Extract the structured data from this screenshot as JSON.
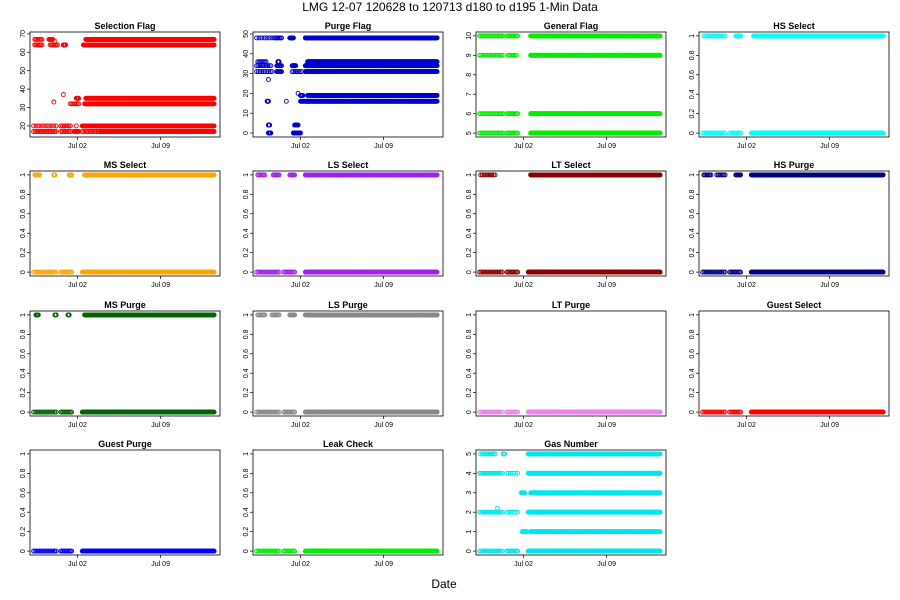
{
  "figure": {
    "title": "LMG   12-07     120628 to 120713     d180 to d195   1-Min Data",
    "xlabel": "Date",
    "x_ticks": [
      {
        "label": "Jul 02",
        "day": 184
      },
      {
        "label": "Jul 09",
        "day": 191
      }
    ],
    "xlim": [
      180,
      196
    ]
  },
  "chart_data": [
    {
      "type": "scatter",
      "title": "Selection Flag",
      "color": "#ff0000",
      "ylim": [
        14,
        71
      ],
      "yticks": [
        20,
        30,
        40,
        50,
        60,
        70
      ],
      "levels": [
        {
          "y": 17,
          "segs": [
            [
              180.3,
              182.2
            ],
            [
              182.6,
              183.4
            ],
            [
              183.7,
              184.1
            ],
            [
              184.4,
              186
            ],
            [
              186,
              192
            ],
            [
              192,
              195.5
            ]
          ],
          "pts": 35
        },
        {
          "y": 20,
          "segs": [
            [
              180.3,
              182.2
            ],
            [
              182.6,
              183.4
            ],
            [
              184.4,
              195.5
            ]
          ],
          "pts": 20
        },
        {
          "y": 32,
          "segs": [
            [
              183.4,
              184.1
            ],
            [
              184.6,
              195.5
            ]
          ],
          "pts": 28
        },
        {
          "y": 35,
          "segs": [
            [
              183.9,
              184.1
            ],
            [
              184.7,
              195.5
            ]
          ],
          "pts": 20
        },
        {
          "y": 64,
          "segs": [
            [
              180.4,
              181
            ],
            [
              181.7,
              182.3
            ],
            [
              182.8,
              183
            ],
            [
              184.5,
              195.5
            ]
          ],
          "pts": 28
        },
        {
          "y": 67,
          "segs": [
            [
              180.4,
              181
            ],
            [
              181.6,
              181.9
            ],
            [
              184.7,
              195.5
            ]
          ],
          "pts": 16
        }
      ],
      "extra": [
        [
          182,
          33
        ],
        [
          182.8,
          37
        ],
        [
          183.9,
          20
        ],
        [
          182.1,
          66
        ]
      ]
    },
    {
      "type": "scatter",
      "title": "Purge Flag",
      "color": "#0000cc",
      "ylim": [
        -2,
        51
      ],
      "yticks": [
        0,
        10,
        20,
        30,
        40,
        50
      ],
      "levels": [
        {
          "y": 0,
          "segs": [
            [
              181.3,
              181.5
            ],
            [
              183.4,
              184
            ]
          ],
          "pts": 6
        },
        {
          "y": 4,
          "segs": [
            [
              181.3,
              181.4
            ],
            [
              183.5,
              183.8
            ]
          ],
          "pts": 3
        },
        {
          "y": 16,
          "segs": [
            [
              181.2,
              181.3
            ],
            [
              184,
              184.3
            ],
            [
              184.4,
              195.5
            ]
          ],
          "pts": 25
        },
        {
          "y": 19,
          "segs": [
            [
              184,
              184.2
            ],
            [
              184.6,
              195.5
            ]
          ],
          "pts": 20
        },
        {
          "y": 31,
          "segs": [
            [
              180.3,
              181.6
            ],
            [
              182,
              182.4
            ],
            [
              183.3,
              184.1
            ],
            [
              184.4,
              195.5
            ]
          ],
          "pts": 35
        },
        {
          "y": 34,
          "segs": [
            [
              180.3,
              181.5
            ],
            [
              182,
              182.4
            ],
            [
              183.3,
              183.6
            ],
            [
              184.4,
              195.5
            ]
          ],
          "pts": 28
        },
        {
          "y": 36,
          "segs": [
            [
              180.4,
              181.1
            ],
            [
              182.1,
              182.2
            ],
            [
              184.6,
              195.5
            ]
          ],
          "pts": 20
        },
        {
          "y": 48,
          "segs": [
            [
              180.3,
              181.6
            ],
            [
              181.8,
              182.4
            ],
            [
              183.1,
              183.4
            ],
            [
              184.4,
              195.5
            ]
          ],
          "pts": 24
        }
      ],
      "extra": [
        [
          181.3,
          27
        ],
        [
          182.8,
          16
        ],
        [
          183.8,
          20
        ]
      ]
    },
    {
      "type": "scatter",
      "title": "General Flag",
      "color": "#00ee00",
      "ylim": [
        4.8,
        10.2
      ],
      "yticks": [
        5,
        6,
        7,
        8,
        9,
        10
      ],
      "levels": [
        {
          "y": 5,
          "segs": [
            [
              180.3,
              182.3
            ],
            [
              182.6,
              183.5
            ],
            [
              184.6,
              195.5
            ]
          ],
          "pts": 40
        },
        {
          "y": 6,
          "segs": [
            [
              180.3,
              182.3
            ],
            [
              182.6,
              183.5
            ],
            [
              184.6,
              195.5
            ]
          ],
          "pts": 40
        },
        {
          "y": 9,
          "segs": [
            [
              180.3,
              182.3
            ],
            [
              182.7,
              183.4
            ],
            [
              184.6,
              195.5
            ]
          ],
          "pts": 36
        },
        {
          "y": 10,
          "segs": [
            [
              180.3,
              182.3
            ],
            [
              182.6,
              183.5
            ],
            [
              184.6,
              195.5
            ]
          ],
          "pts": 40
        }
      ],
      "extra": []
    },
    {
      "type": "scatter",
      "title": "HS Select",
      "color": "#00ffff",
      "ylim": [
        -0.04,
        1.04
      ],
      "yticks": [
        0,
        0.2,
        0.4,
        0.6,
        0.8,
        1.0
      ],
      "levels": [
        {
          "y": 0,
          "segs": [
            [
              180.3,
              182.2
            ],
            [
              182.6,
              183.5
            ],
            [
              184.4,
              195.5
            ]
          ],
          "pts": 40
        },
        {
          "y": 1,
          "segs": [
            [
              180.4,
              182.2
            ],
            [
              183.1,
              183.5
            ],
            [
              184.6,
              195.5
            ]
          ],
          "pts": 36
        }
      ],
      "extra": []
    },
    {
      "type": "scatter",
      "title": "MS Select",
      "color": "#ffa500",
      "ylim": [
        -0.04,
        1.04
      ],
      "yticks": [
        0,
        0.2,
        0.4,
        0.6,
        0.8,
        1.0
      ],
      "levels": [
        {
          "y": 0,
          "segs": [
            [
              180.3,
              182.2
            ],
            [
              182.6,
              183.5
            ],
            [
              184.4,
              195.5
            ]
          ],
          "pts": 40
        },
        {
          "y": 1,
          "segs": [
            [
              180.4,
              180.8
            ],
            [
              182,
              182.1
            ],
            [
              183.3,
              183.5
            ],
            [
              184.6,
              195.5
            ]
          ],
          "pts": 28
        }
      ],
      "extra": []
    },
    {
      "type": "scatter",
      "title": "LS Select",
      "color": "#a020f0",
      "ylim": [
        -0.04,
        1.04
      ],
      "yticks": [
        0,
        0.2,
        0.4,
        0.6,
        0.8,
        1.0
      ],
      "levels": [
        {
          "y": 0,
          "segs": [
            [
              180.3,
              182.2
            ],
            [
              182.6,
              183.5
            ],
            [
              184.4,
              195.5
            ]
          ],
          "pts": 40
        },
        {
          "y": 1,
          "segs": [
            [
              180.4,
              181
            ],
            [
              181.7,
              182.2
            ],
            [
              183.1,
              183.5
            ],
            [
              184.4,
              195.5
            ]
          ],
          "pts": 32
        }
      ],
      "extra": []
    },
    {
      "type": "scatter",
      "title": "LT Select",
      "color": "#8b0000",
      "ylim": [
        -0.04,
        1.04
      ],
      "yticks": [
        0,
        0.2,
        0.4,
        0.6,
        0.8,
        1.0
      ],
      "levels": [
        {
          "y": 0,
          "segs": [
            [
              180.3,
              182.2
            ],
            [
              182.6,
              183.5
            ],
            [
              184.4,
              195.5
            ]
          ],
          "pts": 40
        },
        {
          "y": 1,
          "segs": [
            [
              180.4,
              181.6
            ],
            [
              184.6,
              195.5
            ]
          ],
          "pts": 30
        }
      ],
      "extra": []
    },
    {
      "type": "scatter",
      "title": "HS Purge",
      "color": "#000080",
      "ylim": [
        -0.04,
        1.04
      ],
      "yticks": [
        0,
        0.2,
        0.4,
        0.6,
        0.8,
        1.0
      ],
      "levels": [
        {
          "y": 0,
          "segs": [
            [
              180.3,
              182.2
            ],
            [
              182.6,
              183.5
            ],
            [
              184.4,
              195.5
            ]
          ],
          "pts": 40
        },
        {
          "y": 1,
          "segs": [
            [
              180.4,
              181
            ],
            [
              181.5,
              182.2
            ],
            [
              183.1,
              183.5
            ],
            [
              184.4,
              195.5
            ]
          ],
          "pts": 36
        }
      ],
      "extra": []
    },
    {
      "type": "scatter",
      "title": "MS Purge",
      "color": "#006400",
      "ylim": [
        -0.04,
        1.04
      ],
      "yticks": [
        0,
        0.2,
        0.4,
        0.6,
        0.8,
        1.0
      ],
      "levels": [
        {
          "y": 0,
          "segs": [
            [
              180.3,
              182.2
            ],
            [
              182.6,
              183.5
            ],
            [
              184.4,
              195.5
            ]
          ],
          "pts": 40
        },
        {
          "y": 1,
          "segs": [
            [
              180.5,
              180.7
            ],
            [
              182.1,
              182.2
            ],
            [
              183.2,
              183.3
            ],
            [
              184.6,
              195.5
            ]
          ],
          "pts": 28
        }
      ],
      "extra": []
    },
    {
      "type": "scatter",
      "title": "LS Purge",
      "color": "#888888",
      "ylim": [
        -0.04,
        1.04
      ],
      "yticks": [
        0,
        0.2,
        0.4,
        0.6,
        0.8,
        1.0
      ],
      "levels": [
        {
          "y": 0,
          "segs": [
            [
              180.3,
              182.2
            ],
            [
              182.6,
              183.5
            ],
            [
              184.4,
              195.5
            ]
          ],
          "pts": 40
        },
        {
          "y": 1,
          "segs": [
            [
              180.4,
              181
            ],
            [
              181.6,
              182.2
            ],
            [
              183.1,
              183.5
            ],
            [
              184.4,
              195.5
            ]
          ],
          "pts": 40
        }
      ],
      "extra": []
    },
    {
      "type": "scatter",
      "title": "LT Purge",
      "color": "#ee82ee",
      "ylim": [
        -0.04,
        1.04
      ],
      "yticks": [
        0,
        0.2,
        0.4,
        0.6,
        0.8,
        1.0
      ],
      "levels": [
        {
          "y": 0,
          "segs": [
            [
              180.3,
              182.2
            ],
            [
              182.6,
              183.5
            ],
            [
              184.4,
              195.5
            ]
          ],
          "pts": 40
        }
      ],
      "extra": []
    },
    {
      "type": "scatter",
      "title": "Guest Select",
      "color": "#ff0000",
      "ylim": [
        -0.04,
        1.04
      ],
      "yticks": [
        0,
        0.2,
        0.4,
        0.6,
        0.8,
        1.0
      ],
      "levels": [
        {
          "y": 0,
          "segs": [
            [
              180.3,
              182.2
            ],
            [
              182.6,
              183.5
            ],
            [
              184.4,
              195.5
            ]
          ],
          "pts": 40
        }
      ],
      "extra": []
    },
    {
      "type": "scatter",
      "title": "Guest Purge",
      "color": "#0000ff",
      "ylim": [
        -0.04,
        1.04
      ],
      "yticks": [
        0,
        0.2,
        0.4,
        0.6,
        0.8,
        1.0
      ],
      "levels": [
        {
          "y": 0,
          "segs": [
            [
              180.3,
              182.2
            ],
            [
              182.6,
              183.5
            ],
            [
              184.4,
              195.5
            ]
          ],
          "pts": 40
        }
      ],
      "extra": []
    },
    {
      "type": "scatter",
      "title": "Leak Check",
      "color": "#00ee00",
      "ylim": [
        -0.04,
        1.04
      ],
      "yticks": [
        0,
        0.2,
        0.4,
        0.6,
        0.8,
        1.0
      ],
      "levels": [
        {
          "y": 0,
          "segs": [
            [
              180.3,
              182.2
            ],
            [
              182.6,
              183.5
            ],
            [
              184.4,
              195.5
            ]
          ],
          "pts": 40
        }
      ],
      "extra": []
    },
    {
      "type": "scatter",
      "title": "Gas Number",
      "color": "#00e5ee",
      "ylim": [
        -0.2,
        5.2
      ],
      "yticks": [
        0,
        1,
        2,
        3,
        4,
        5
      ],
      "levels": [
        {
          "y": 0,
          "segs": [
            [
              180.3,
              182.2
            ],
            [
              182.6,
              183.5
            ],
            [
              184.4,
              195.5
            ]
          ],
          "pts": 40
        },
        {
          "y": 1,
          "segs": [
            [
              183.9,
              184.3
            ],
            [
              184.6,
              195.5
            ]
          ],
          "pts": 30
        },
        {
          "y": 2,
          "segs": [
            [
              180.3,
              182.2
            ],
            [
              182.6,
              183.5
            ],
            [
              184.4,
              195.5
            ]
          ],
          "pts": 36
        },
        {
          "y": 3,
          "segs": [
            [
              183.9,
              184.1
            ],
            [
              184.6,
              195.5
            ]
          ],
          "pts": 24
        },
        {
          "y": 4,
          "segs": [
            [
              180.3,
              182.2
            ],
            [
              182.6,
              183.5
            ],
            [
              184.4,
              195.5
            ]
          ],
          "pts": 38
        },
        {
          "y": 5,
          "segs": [
            [
              180.4,
              181.6
            ],
            [
              182.3,
              182.4
            ],
            [
              184.4,
              195.5
            ]
          ],
          "pts": 26
        }
      ],
      "extra": [
        [
          181.8,
          2.2
        ],
        [
          183.8,
          3
        ]
      ]
    }
  ]
}
